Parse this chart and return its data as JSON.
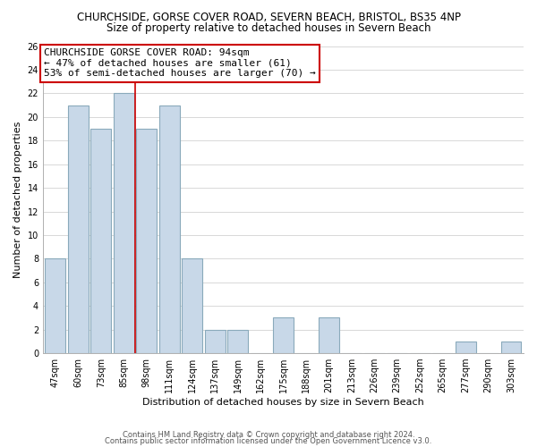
{
  "title": "CHURCHSIDE, GORSE COVER ROAD, SEVERN BEACH, BRISTOL, BS35 4NP",
  "subtitle": "Size of property relative to detached houses in Severn Beach",
  "xlabel": "Distribution of detached houses by size in Severn Beach",
  "ylabel": "Number of detached properties",
  "bin_labels": [
    "47sqm",
    "60sqm",
    "73sqm",
    "85sqm",
    "98sqm",
    "111sqm",
    "124sqm",
    "137sqm",
    "149sqm",
    "162sqm",
    "175sqm",
    "188sqm",
    "201sqm",
    "213sqm",
    "226sqm",
    "239sqm",
    "252sqm",
    "265sqm",
    "277sqm",
    "290sqm",
    "303sqm"
  ],
  "bar_heights": [
    8,
    21,
    19,
    22,
    19,
    21,
    8,
    2,
    2,
    0,
    3,
    0,
    3,
    0,
    0,
    0,
    0,
    0,
    1,
    0,
    1
  ],
  "bar_color": "#c8d8e8",
  "bar_edge_color": "#8aaabb",
  "vline_x": 3.5,
  "vline_color": "#cc0000",
  "annotation_box_text": "CHURCHSIDE GORSE COVER ROAD: 94sqm\n← 47% of detached houses are smaller (61)\n53% of semi-detached houses are larger (70) →",
  "ylim": [
    0,
    26
  ],
  "yticks": [
    0,
    2,
    4,
    6,
    8,
    10,
    12,
    14,
    16,
    18,
    20,
    22,
    24,
    26
  ],
  "footer_line1": "Contains HM Land Registry data © Crown copyright and database right 2024.",
  "footer_line2": "Contains public sector information licensed under the Open Government Licence v3.0.",
  "background_color": "#ffffff",
  "grid_color": "#d8d8d8",
  "title_fontsize": 8.5,
  "subtitle_fontsize": 8.5,
  "axis_label_fontsize": 8,
  "tick_fontsize": 7,
  "annotation_fontsize": 8,
  "footer_fontsize": 6
}
